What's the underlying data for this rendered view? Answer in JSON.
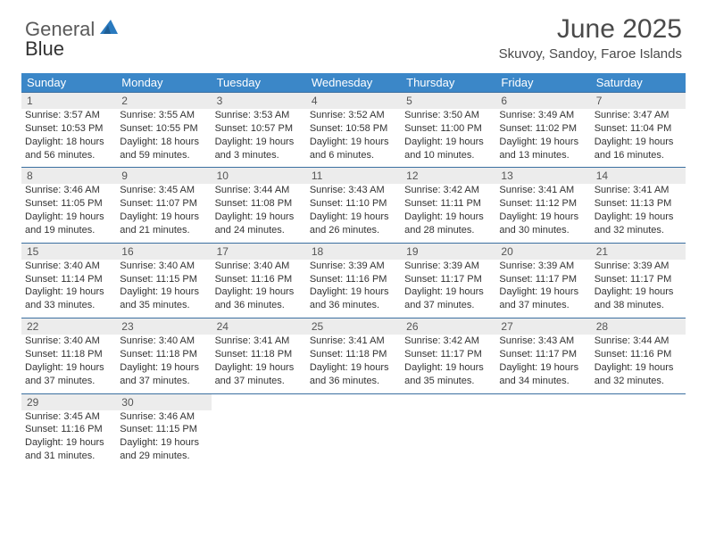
{
  "logo": {
    "text1": "General",
    "text2": "Blue",
    "text1_color": "#5a5a5a",
    "text2_color": "#2a7abf",
    "icon_color": "#2a7abf"
  },
  "header": {
    "title": "June 2025",
    "location": "Skuvoy, Sandoy, Faroe Islands"
  },
  "colors": {
    "header_bg": "#3b87c8",
    "week_border": "#3b6fa0",
    "daynum_bg": "#ececec",
    "text": "#333333",
    "page_bg": "#ffffff"
  },
  "day_labels": [
    "Sunday",
    "Monday",
    "Tuesday",
    "Wednesday",
    "Thursday",
    "Friday",
    "Saturday"
  ],
  "weeks": [
    [
      {
        "n": "1",
        "sr": "Sunrise: 3:57 AM",
        "ss": "Sunset: 10:53 PM",
        "dl1": "Daylight: 18 hours",
        "dl2": "and 56 minutes."
      },
      {
        "n": "2",
        "sr": "Sunrise: 3:55 AM",
        "ss": "Sunset: 10:55 PM",
        "dl1": "Daylight: 18 hours",
        "dl2": "and 59 minutes."
      },
      {
        "n": "3",
        "sr": "Sunrise: 3:53 AM",
        "ss": "Sunset: 10:57 PM",
        "dl1": "Daylight: 19 hours",
        "dl2": "and 3 minutes."
      },
      {
        "n": "4",
        "sr": "Sunrise: 3:52 AM",
        "ss": "Sunset: 10:58 PM",
        "dl1": "Daylight: 19 hours",
        "dl2": "and 6 minutes."
      },
      {
        "n": "5",
        "sr": "Sunrise: 3:50 AM",
        "ss": "Sunset: 11:00 PM",
        "dl1": "Daylight: 19 hours",
        "dl2": "and 10 minutes."
      },
      {
        "n": "6",
        "sr": "Sunrise: 3:49 AM",
        "ss": "Sunset: 11:02 PM",
        "dl1": "Daylight: 19 hours",
        "dl2": "and 13 minutes."
      },
      {
        "n": "7",
        "sr": "Sunrise: 3:47 AM",
        "ss": "Sunset: 11:04 PM",
        "dl1": "Daylight: 19 hours",
        "dl2": "and 16 minutes."
      }
    ],
    [
      {
        "n": "8",
        "sr": "Sunrise: 3:46 AM",
        "ss": "Sunset: 11:05 PM",
        "dl1": "Daylight: 19 hours",
        "dl2": "and 19 minutes."
      },
      {
        "n": "9",
        "sr": "Sunrise: 3:45 AM",
        "ss": "Sunset: 11:07 PM",
        "dl1": "Daylight: 19 hours",
        "dl2": "and 21 minutes."
      },
      {
        "n": "10",
        "sr": "Sunrise: 3:44 AM",
        "ss": "Sunset: 11:08 PM",
        "dl1": "Daylight: 19 hours",
        "dl2": "and 24 minutes."
      },
      {
        "n": "11",
        "sr": "Sunrise: 3:43 AM",
        "ss": "Sunset: 11:10 PM",
        "dl1": "Daylight: 19 hours",
        "dl2": "and 26 minutes."
      },
      {
        "n": "12",
        "sr": "Sunrise: 3:42 AM",
        "ss": "Sunset: 11:11 PM",
        "dl1": "Daylight: 19 hours",
        "dl2": "and 28 minutes."
      },
      {
        "n": "13",
        "sr": "Sunrise: 3:41 AM",
        "ss": "Sunset: 11:12 PM",
        "dl1": "Daylight: 19 hours",
        "dl2": "and 30 minutes."
      },
      {
        "n": "14",
        "sr": "Sunrise: 3:41 AM",
        "ss": "Sunset: 11:13 PM",
        "dl1": "Daylight: 19 hours",
        "dl2": "and 32 minutes."
      }
    ],
    [
      {
        "n": "15",
        "sr": "Sunrise: 3:40 AM",
        "ss": "Sunset: 11:14 PM",
        "dl1": "Daylight: 19 hours",
        "dl2": "and 33 minutes."
      },
      {
        "n": "16",
        "sr": "Sunrise: 3:40 AM",
        "ss": "Sunset: 11:15 PM",
        "dl1": "Daylight: 19 hours",
        "dl2": "and 35 minutes."
      },
      {
        "n": "17",
        "sr": "Sunrise: 3:40 AM",
        "ss": "Sunset: 11:16 PM",
        "dl1": "Daylight: 19 hours",
        "dl2": "and 36 minutes."
      },
      {
        "n": "18",
        "sr": "Sunrise: 3:39 AM",
        "ss": "Sunset: 11:16 PM",
        "dl1": "Daylight: 19 hours",
        "dl2": "and 36 minutes."
      },
      {
        "n": "19",
        "sr": "Sunrise: 3:39 AM",
        "ss": "Sunset: 11:17 PM",
        "dl1": "Daylight: 19 hours",
        "dl2": "and 37 minutes."
      },
      {
        "n": "20",
        "sr": "Sunrise: 3:39 AM",
        "ss": "Sunset: 11:17 PM",
        "dl1": "Daylight: 19 hours",
        "dl2": "and 37 minutes."
      },
      {
        "n": "21",
        "sr": "Sunrise: 3:39 AM",
        "ss": "Sunset: 11:17 PM",
        "dl1": "Daylight: 19 hours",
        "dl2": "and 38 minutes."
      }
    ],
    [
      {
        "n": "22",
        "sr": "Sunrise: 3:40 AM",
        "ss": "Sunset: 11:18 PM",
        "dl1": "Daylight: 19 hours",
        "dl2": "and 37 minutes."
      },
      {
        "n": "23",
        "sr": "Sunrise: 3:40 AM",
        "ss": "Sunset: 11:18 PM",
        "dl1": "Daylight: 19 hours",
        "dl2": "and 37 minutes."
      },
      {
        "n": "24",
        "sr": "Sunrise: 3:41 AM",
        "ss": "Sunset: 11:18 PM",
        "dl1": "Daylight: 19 hours",
        "dl2": "and 37 minutes."
      },
      {
        "n": "25",
        "sr": "Sunrise: 3:41 AM",
        "ss": "Sunset: 11:18 PM",
        "dl1": "Daylight: 19 hours",
        "dl2": "and 36 minutes."
      },
      {
        "n": "26",
        "sr": "Sunrise: 3:42 AM",
        "ss": "Sunset: 11:17 PM",
        "dl1": "Daylight: 19 hours",
        "dl2": "and 35 minutes."
      },
      {
        "n": "27",
        "sr": "Sunrise: 3:43 AM",
        "ss": "Sunset: 11:17 PM",
        "dl1": "Daylight: 19 hours",
        "dl2": "and 34 minutes."
      },
      {
        "n": "28",
        "sr": "Sunrise: 3:44 AM",
        "ss": "Sunset: 11:16 PM",
        "dl1": "Daylight: 19 hours",
        "dl2": "and 32 minutes."
      }
    ],
    [
      {
        "n": "29",
        "sr": "Sunrise: 3:45 AM",
        "ss": "Sunset: 11:16 PM",
        "dl1": "Daylight: 19 hours",
        "dl2": "and 31 minutes."
      },
      {
        "n": "30",
        "sr": "Sunrise: 3:46 AM",
        "ss": "Sunset: 11:15 PM",
        "dl1": "Daylight: 19 hours",
        "dl2": "and 29 minutes."
      },
      null,
      null,
      null,
      null,
      null
    ]
  ]
}
